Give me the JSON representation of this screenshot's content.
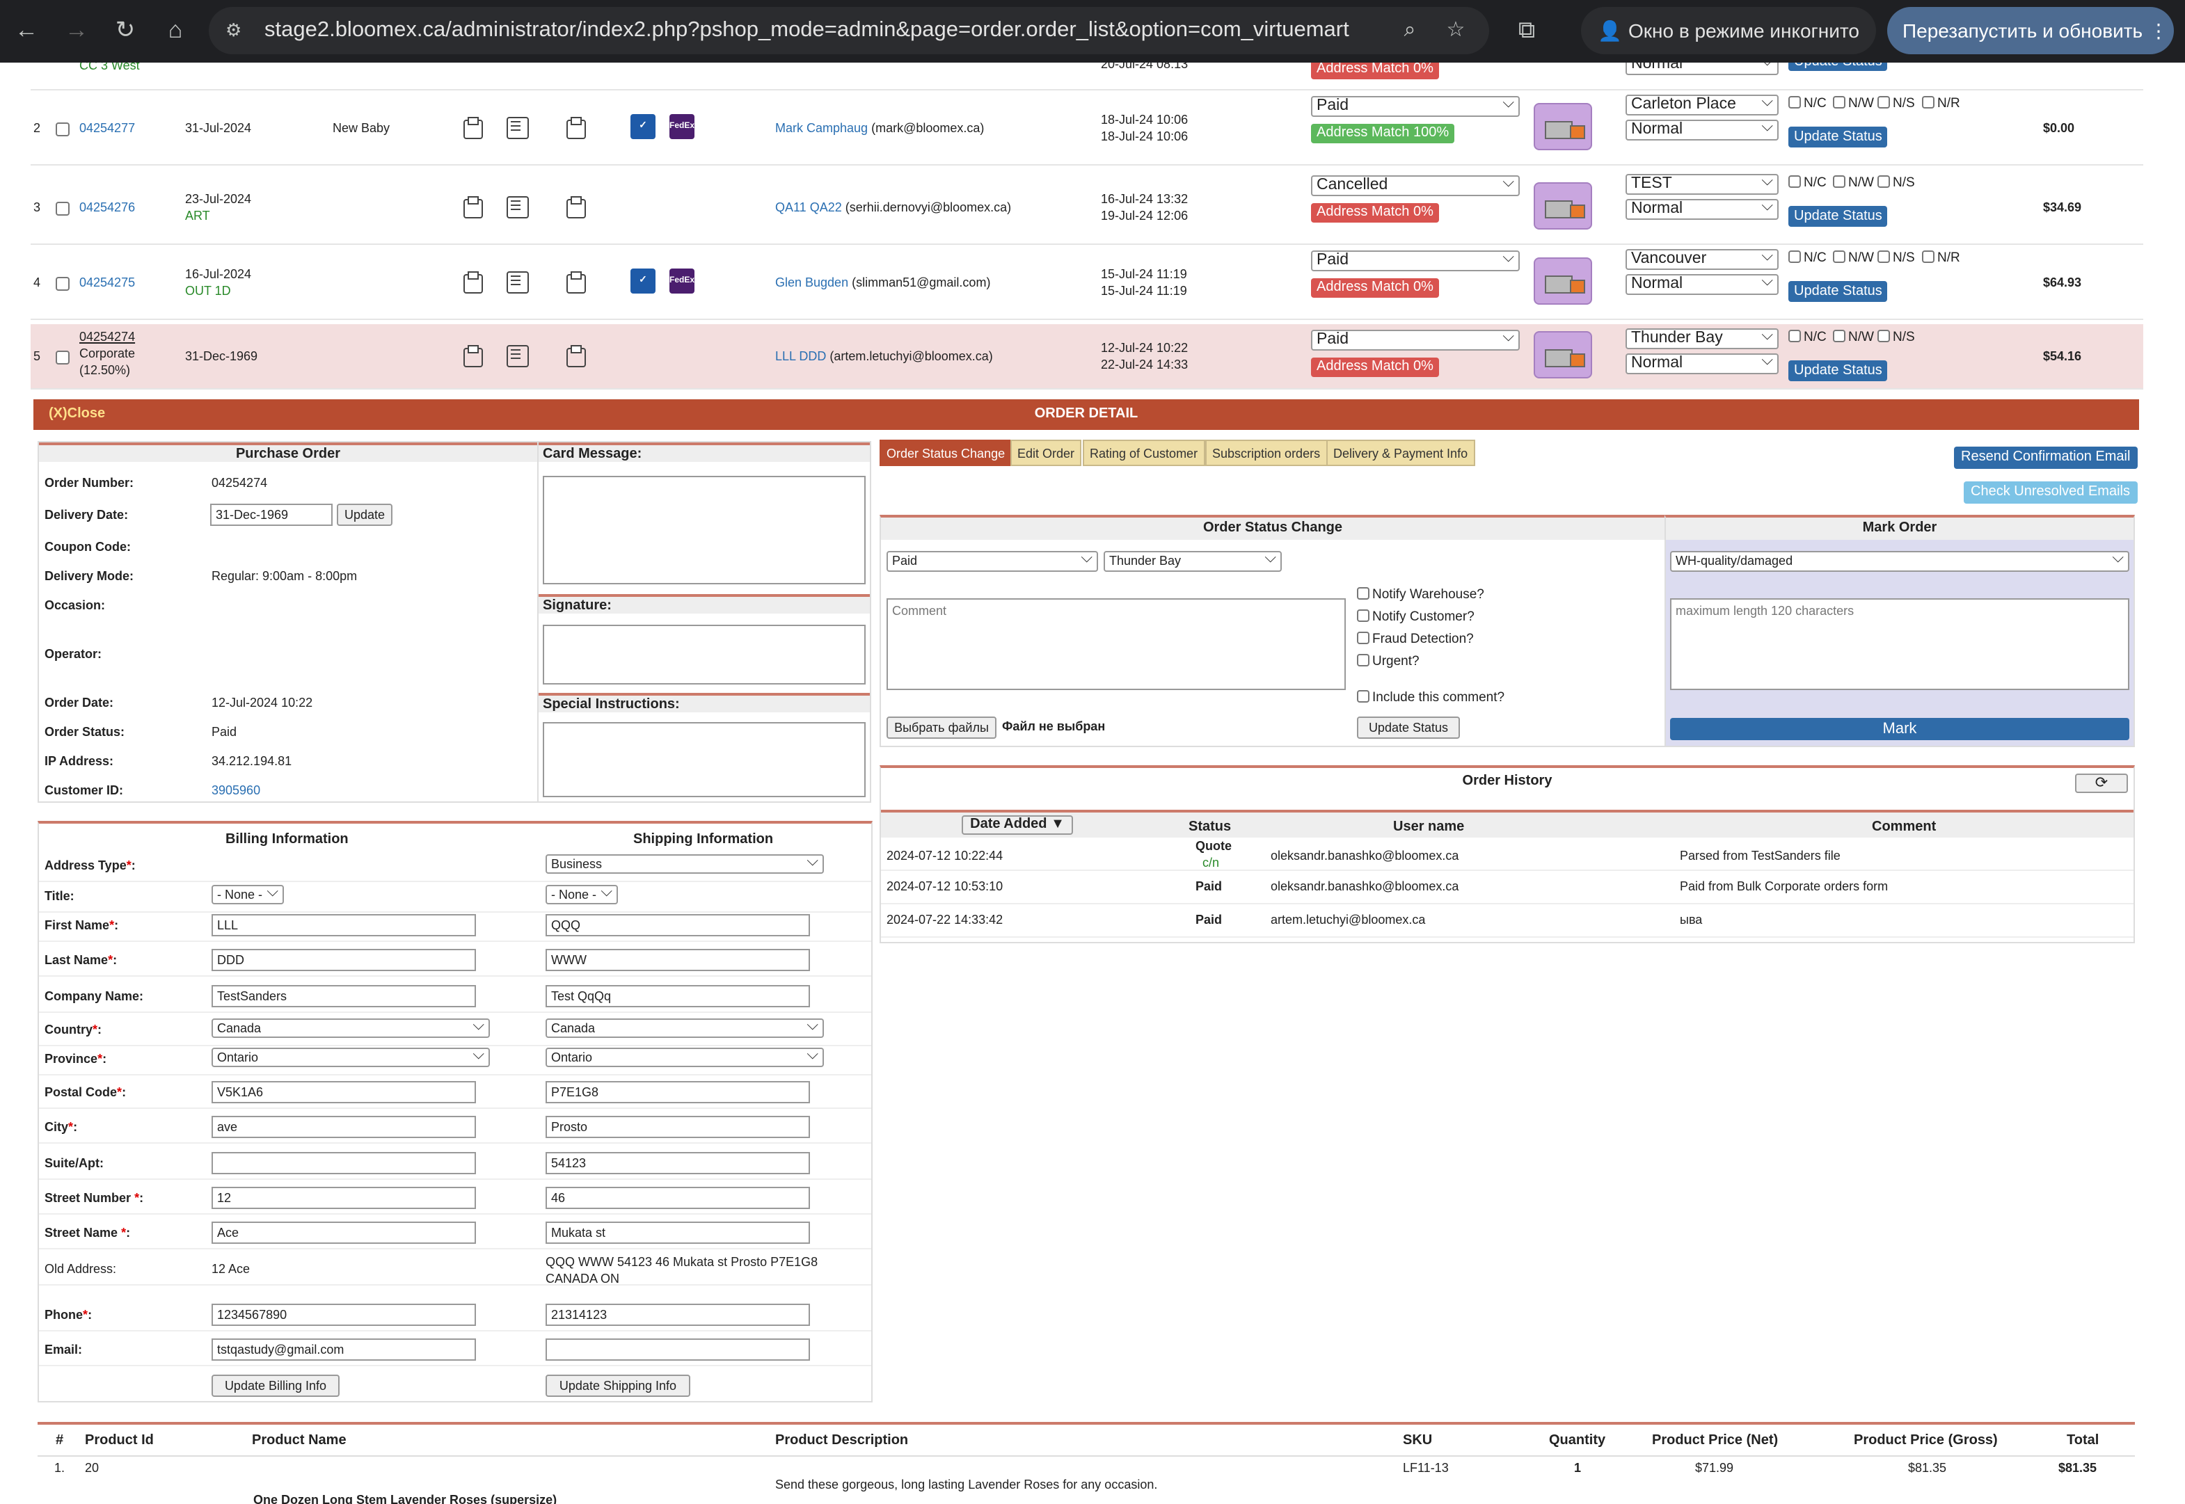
{
  "browser": {
    "url": "stage2.bloomex.ca/administrator/index2.php?pshop_mode=admin&page=order.order_list&option=com_virtuemart",
    "incognito": "Окно в режиме инкогнито",
    "relaunch": "Перезапустить и обновить"
  },
  "top_partial": {
    "left": "CC 3 West",
    "date": "20-Jul-24 08:13",
    "badge": "Address Match 0%",
    "select": "Normal",
    "btn": "Update Status"
  },
  "orders": [
    {
      "num": "2",
      "id": "04254277",
      "date": "31-Jul-2024",
      "sub": "",
      "occ": "New Baby",
      "logos": true,
      "cust": "Mark Camphaug",
      "email": "(mark@bloomex.ca)",
      "d1": "18-Jul-24 10:06",
      "d2": "18-Jul-24 10:06",
      "status": "Paid",
      "match": "Address Match 100%",
      "match_color": "green",
      "wh": "Carleton Place",
      "prio": "Normal",
      "btn": "Update Status",
      "flags": [
        "N/C",
        "N/W",
        "N/S",
        "N/R"
      ],
      "total": "$0.00"
    },
    {
      "num": "3",
      "id": "04254276",
      "date": "23-Jul-2024",
      "sub": "ART",
      "occ": "",
      "logos": false,
      "cust": "QA11 QA22",
      "email": "(serhii.dernovyi@bloomex.ca)",
      "d1": "16-Jul-24 13:32",
      "d2": "19-Jul-24 12:06",
      "status": "Cancelled",
      "match": "Address Match 0%",
      "match_color": "red",
      "wh": "TEST",
      "prio": "Normal",
      "btn": "Update Status",
      "flags": [
        "N/C",
        "N/W",
        "N/S"
      ],
      "total": "$34.69"
    },
    {
      "num": "4",
      "id": "04254275",
      "date": "16-Jul-2024",
      "sub": "OUT 1D",
      "occ": "",
      "logos": true,
      "cust": "Glen Bugden",
      "email": "(slimman51@gmail.com)",
      "d1": "15-Jul-24 11:19",
      "d2": "15-Jul-24 11:19",
      "status": "Paid",
      "match": "Address Match 0%",
      "match_color": "red",
      "wh": "Vancouver",
      "prio": "Normal",
      "btn": "Update Status",
      "flags": [
        "N/C",
        "N/W",
        "N/S",
        "N/R"
      ],
      "total": "$64.93"
    },
    {
      "num": "5",
      "id": "04254274",
      "id_sub1": "Corporate",
      "id_sub2": "(12.50%)",
      "date": "31-Dec-1969",
      "sub": "",
      "occ": "",
      "logos": false,
      "cust": "LLL DDD",
      "email": "(artem.letuchyi@bloomex.ca)",
      "d1": "12-Jul-24 10:22",
      "d2": "22-Jul-24 14:33",
      "status": "Paid",
      "match": "Address Match 0%",
      "match_color": "red",
      "wh": "Thunder Bay",
      "prio": "Normal",
      "btn": "Update Status",
      "flags": [
        "N/C",
        "N/W",
        "N/S"
      ],
      "total": "$54.16"
    }
  ],
  "logos": {
    "dhl": "✓",
    "fedex": "FedEx"
  },
  "order_detail": {
    "close": "(X)Close",
    "title": "ORDER DETAIL"
  },
  "purchase": {
    "title": "Purchase Order",
    "order_number_l": "Order Number:",
    "order_number": "04254274",
    "delivery_date_l": "Delivery Date:",
    "delivery_date": "31-Dec-1969",
    "update": "Update",
    "coupon_l": "Coupon Code:",
    "mode_l": "Delivery Mode:",
    "mode": "Regular: 9:00am - 8:00pm",
    "occasion_l": "Occasion:",
    "operator_l": "Operator:",
    "order_date_l": "Order Date:",
    "order_date": "12-Jul-2024 10:22",
    "status_l": "Order Status:",
    "status": "Paid",
    "ip_l": "IP Address:",
    "ip": "34.212.194.81",
    "cid_l": "Customer ID:",
    "cid": "3905960"
  },
  "card": {
    "card_message": "Card Message:",
    "signature": "Signature:",
    "special": "Special Instructions:"
  },
  "tabs": [
    "Order Status Change",
    "Edit Order",
    "Rating of Customer",
    "Subscription orders",
    "Delivery & Payment Info"
  ],
  "buttons": {
    "resend": "Resend Confirmation Email",
    "check": "Check Unresolved Emails"
  },
  "status_change": {
    "title": "Order Status Change",
    "status": "Paid",
    "warehouse": "Thunder Bay",
    "comment_ph": "Comment",
    "checks": [
      "Notify Warehouse?",
      "Notify Customer?",
      "Fraud Detection?",
      "Urgent?",
      "Include this comment?"
    ],
    "choose": "Выбрать файлы",
    "nofile": "Файл не выбран",
    "update": "Update Status"
  },
  "mark": {
    "title": "Mark Order",
    "value": "WH-quality/damaged",
    "ph": "maximum length 120 characters",
    "btn": "Mark"
  },
  "history": {
    "title": "Order History",
    "refresh_icon": "refresh-icon",
    "cols": [
      "Date Added ▼",
      "Status",
      "User name",
      "Comment"
    ],
    "rows": [
      {
        "date": "2024-07-12 10:22:44",
        "status": "Quote",
        "status2": "c/n",
        "user": "oleksandr.banashko@bloomex.ca",
        "comment": "Parsed from TestSanders file"
      },
      {
        "date": "2024-07-12 10:53:10",
        "status": "Paid",
        "status2": "",
        "user": "oleksandr.banashko@bloomex.ca",
        "comment": "Paid from Bulk Corporate orders form"
      },
      {
        "date": "2024-07-22 14:33:42",
        "status": "Paid",
        "status2": "",
        "user": "artem.letuchyi@bloomex.ca",
        "comment": "ыва"
      }
    ]
  },
  "address": {
    "billing_title": "Billing Information",
    "shipping_title": "Shipping Information",
    "fields": [
      {
        "label": "Address Type",
        "req": true,
        "b": "",
        "s": "Business",
        "stype": "select"
      },
      {
        "label": "Title:",
        "req": false,
        "b": "- None -",
        "s": "- None -",
        "btype": "select",
        "stype": "select"
      },
      {
        "label": "First Name",
        "req": true,
        "b": "LLL",
        "s": "QQQ"
      },
      {
        "label": "Last Name",
        "req": true,
        "b": "DDD",
        "s": "WWW"
      },
      {
        "label": "Company Name:",
        "req": false,
        "b": "TestSanders",
        "s": "Test QqQq"
      },
      {
        "label": "Country",
        "req": true,
        "b": "Canada",
        "s": "Canada",
        "btype": "select",
        "stype": "select"
      },
      {
        "label": "Province",
        "req": true,
        "b": "Ontario",
        "s": "Ontario",
        "btype": "select",
        "stype": "select"
      },
      {
        "label": "Postal Code",
        "req": true,
        "b": "V5K1A6",
        "s": "P7E1G8"
      },
      {
        "label": "City",
        "req": true,
        "b": "ave",
        "s": "Prosto"
      },
      {
        "label": "Suite/Apt:",
        "req": false,
        "b": "",
        "s": "54123"
      },
      {
        "label": "Street Number ",
        "req": true,
        "b": "12",
        "s": "46"
      },
      {
        "label": "Street Name ",
        "req": true,
        "b": "Ace",
        "s": "Mukata st"
      },
      {
        "label": "Old Address:",
        "req": false,
        "b": "12 Ace",
        "s": "QQQ WWW 54123 46 Mukata st Prosto P7E1G8 CANADA ON",
        "btype": "text",
        "stype": "text"
      },
      {
        "label": "Phone",
        "req": true,
        "b": "1234567890",
        "s": "21314123"
      },
      {
        "label": "Email:",
        "req": false,
        "b": "tstqastudy@gmail.com",
        "s": ""
      }
    ],
    "upd_billing": "Update Billing Info",
    "upd_shipping": "Update Shipping Info"
  },
  "products": {
    "cols": [
      "#",
      "Product Id",
      "Product Name",
      "Product Description",
      "SKU",
      "Quantity",
      "Product Price (Net)",
      "Product Price (Gross)",
      "Total"
    ],
    "row": {
      "n": "1.",
      "id": "20",
      "name": "One Dozen Long Stem Lavender Roses (supersize)",
      "desc": "Send these gorgeous, long lasting Lavender Roses for any occasion.",
      "sku": "LF11-13",
      "qty": "1",
      "net": "$71.99",
      "gross": "$81.35",
      "total": "$81.35"
    }
  }
}
